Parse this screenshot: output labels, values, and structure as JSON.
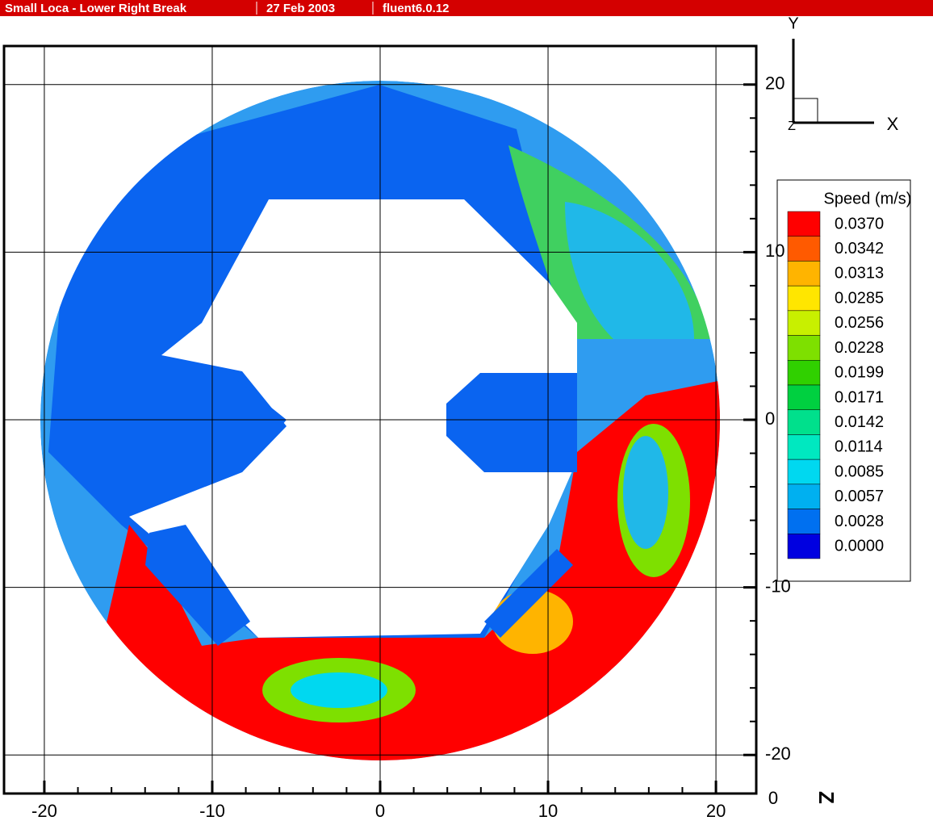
{
  "chart_data": {
    "type": "contour",
    "title": "Small Loca - Lower Right Break",
    "date": "27 Feb 2003",
    "subtitle": "fluent6.0.12",
    "x_label": "Z",
    "y_label": "Y",
    "corner_label": "0",
    "triad": [
      "Y",
      "X",
      "Z"
    ],
    "legend_title": "Speed (m/s)",
    "xlim": [
      -22.4,
      22.4
    ],
    "ylim": [
      -22.3,
      22.3
    ],
    "xticks": [
      -20,
      -10,
      0,
      10,
      20
    ],
    "yticks": [
      -20,
      -10,
      0,
      10,
      20
    ],
    "xminorticks": [
      -18,
      -16,
      -14,
      -12,
      -8,
      -6,
      -4,
      -2,
      2,
      4,
      6,
      8,
      12,
      14,
      16,
      18
    ],
    "yminorticks": [
      -18,
      -16,
      -14,
      -12,
      -8,
      -6,
      -4,
      -2,
      2,
      4,
      6,
      8,
      12,
      14,
      16,
      18
    ],
    "grid": true,
    "levels": [
      {
        "value": 0.037,
        "label": "0.0370"
      },
      {
        "value": 0.0342,
        "label": "0.0342"
      },
      {
        "value": 0.0313,
        "label": "0.0313"
      },
      {
        "value": 0.0285,
        "label": "0.0285"
      },
      {
        "value": 0.0256,
        "label": "0.0256"
      },
      {
        "value": 0.0228,
        "label": "0.0228"
      },
      {
        "value": 0.0199,
        "label": "0.0199"
      },
      {
        "value": 0.0171,
        "label": "0.0171"
      },
      {
        "value": 0.0142,
        "label": "0.0142"
      },
      {
        "value": 0.0114,
        "label": "0.0114"
      },
      {
        "value": 0.0085,
        "label": "0.0085"
      },
      {
        "value": 0.0057,
        "label": "0.0057"
      },
      {
        "value": 0.0028,
        "label": "0.0028"
      },
      {
        "value": 0,
        "label": "0.0000"
      }
    ],
    "level_colors": [
      "#ff0000",
      "#ff5a00",
      "#ffb400",
      "#ffe600",
      "#c8f000",
      "#7ee000",
      "#30d000",
      "#00d040",
      "#00e08c",
      "#00e8c0",
      "#00d8f0",
      "#00b0f0",
      "#0070f0",
      "#0000e0"
    ]
  }
}
